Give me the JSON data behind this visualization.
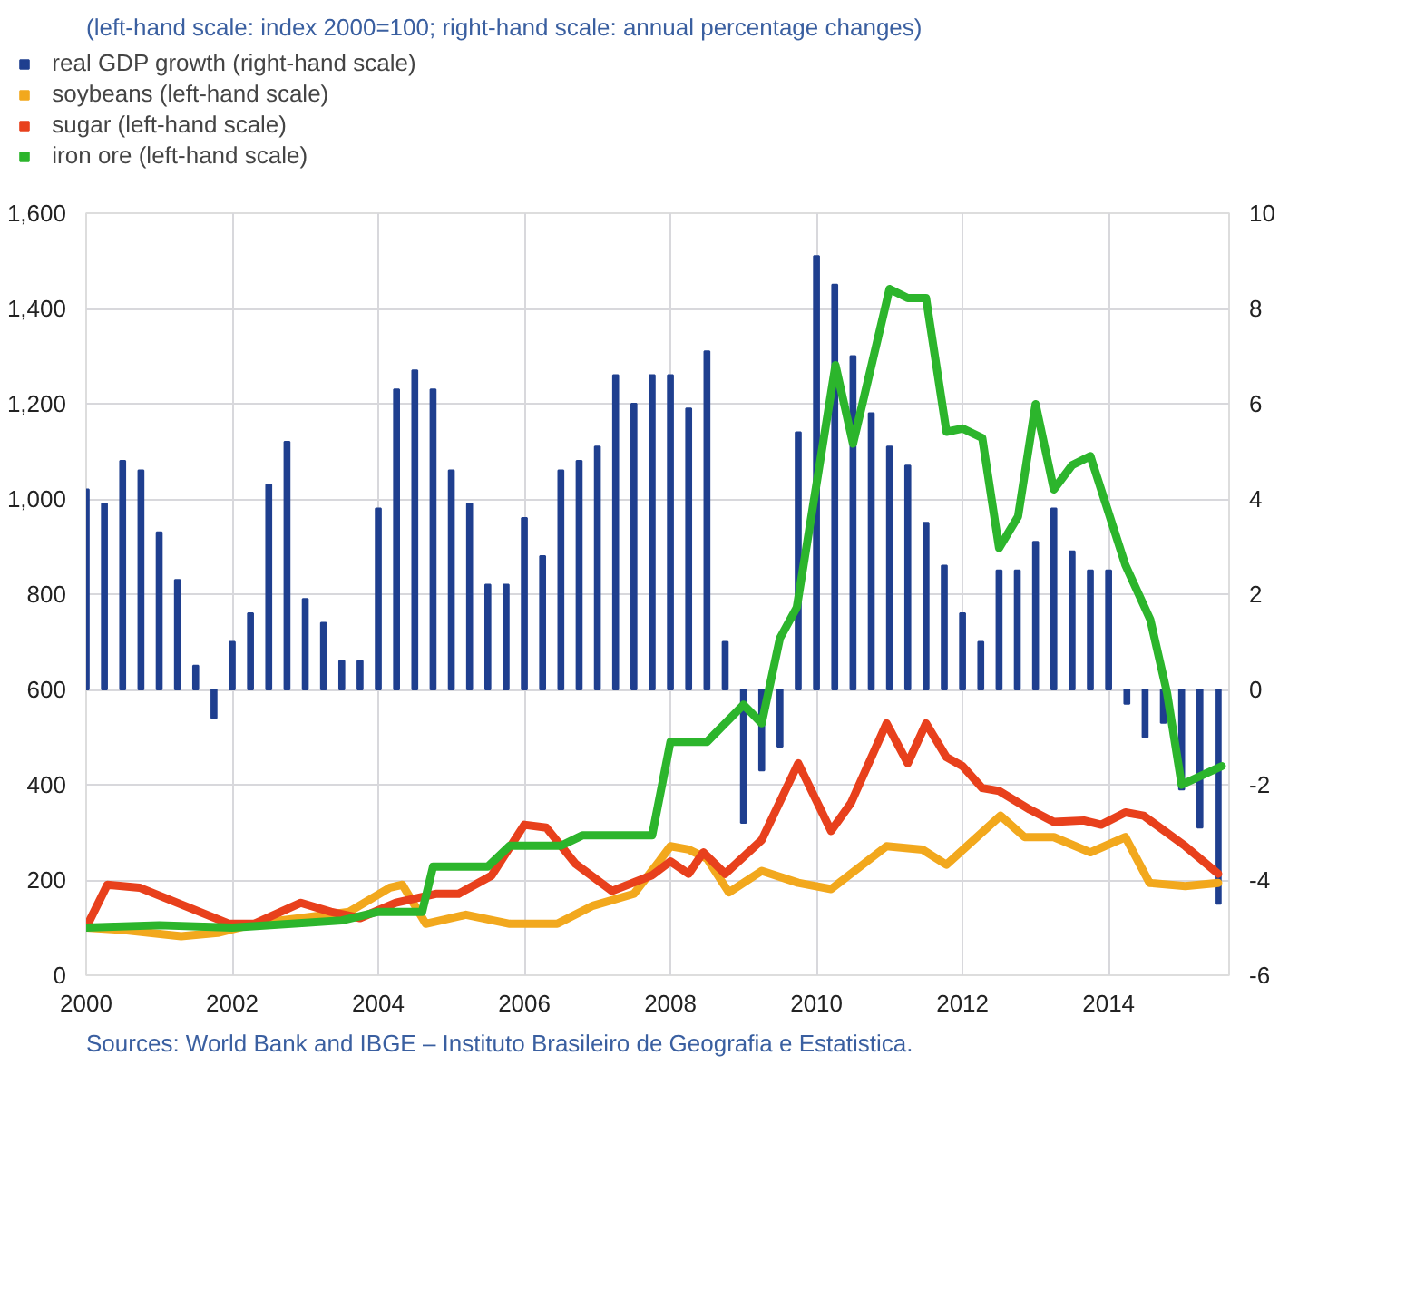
{
  "chart_data": {
    "type": "line",
    "subtitle": "(left-hand scale: index 2000=100; right-hand scale: annual percentage changes)",
    "annotations": [
      "Sources: World Bank and IBGE – Instituto Brasileiro de Geografia e Estatistica."
    ],
    "xlim": [
      2000,
      2015.65
    ],
    "xticks": [
      2000,
      2002,
      2004,
      2006,
      2008,
      2010,
      2012,
      2014
    ],
    "ylim": [
      0,
      1600
    ],
    "yticks": [
      0,
      200,
      400,
      600,
      800,
      {
        "value": 1000,
        "label": "1,000"
      },
      {
        "value": 1200,
        "label": "1,200"
      },
      {
        "value": 1400,
        "label": "1,400"
      },
      {
        "value": 1600,
        "label": "1,600"
      }
    ],
    "y2lim": [
      -6,
      10
    ],
    "y2ticks": [
      -6,
      -4,
      -2,
      0,
      2,
      4,
      6,
      8,
      10
    ],
    "grid": true,
    "legend": "top",
    "marker": "none",
    "line_style": "solid",
    "series": [
      {
        "name": "real GDP growth (right-hand scale)",
        "type": "bar",
        "axis": "y2",
        "color": "#1f3f8f",
        "x": [
          2000,
          2000.25,
          2000.5,
          2000.75,
          2001,
          2001.25,
          2001.5,
          2001.75,
          2002,
          2002.25,
          2002.5,
          2002.75,
          2003,
          2003.25,
          2003.5,
          2003.75,
          2004,
          2004.25,
          2004.5,
          2004.75,
          2005,
          2005.25,
          2005.5,
          2005.75,
          2006,
          2006.25,
          2006.5,
          2006.75,
          2007,
          2007.25,
          2007.5,
          2007.75,
          2008,
          2008.25,
          2008.5,
          2008.75,
          2009,
          2009.25,
          2009.5,
          2009.75,
          2010,
          2010.25,
          2010.5,
          2010.75,
          2011,
          2011.25,
          2011.5,
          2011.75,
          2012,
          2012.25,
          2012.5,
          2012.75,
          2013,
          2013.25,
          2013.5,
          2013.75,
          2014,
          2014.25,
          2014.5,
          2014.75,
          2015,
          2015.25,
          2015.5
        ],
        "values": [
          4.2,
          3.9,
          4.8,
          4.6,
          3.3,
          2.3,
          0.5,
          -0.6,
          1.0,
          1.6,
          4.3,
          5.2,
          1.9,
          1.4,
          0.6,
          0.6,
          3.8,
          6.3,
          6.7,
          6.3,
          4.6,
          3.9,
          2.2,
          2.2,
          3.6,
          2.8,
          4.6,
          4.8,
          5.1,
          6.6,
          6.0,
          6.6,
          6.6,
          5.9,
          7.1,
          1.0,
          -2.8,
          -1.7,
          -1.2,
          5.4,
          9.1,
          8.5,
          7.0,
          5.8,
          5.1,
          4.7,
          3.5,
          2.6,
          1.6,
          1.0,
          2.5,
          2.5,
          3.1,
          3.8,
          2.9,
          2.5,
          2.5,
          -0.3,
          -1.0,
          -0.7,
          -2.1,
          -2.9,
          -4.5
        ]
      },
      {
        "name": "soybeans (left-hand scale)",
        "color": "#f2a81d",
        "x": [
          2000,
          2000.5,
          2001.3,
          2001.8,
          2002.3,
          2002.94,
          2003.6,
          2004.16,
          2004.33,
          2004.65,
          2005.2,
          2005.8,
          2006.45,
          2006.94,
          2007.5,
          2007.85,
          2008.0,
          2008.25,
          2008.5,
          2008.8,
          2009.25,
          2009.75,
          2010.2,
          2010.96,
          2011.45,
          2011.78,
          2012.52,
          2012.85,
          2013.25,
          2013.75,
          2014.23,
          2014.56,
          2015.05,
          2015.5
        ],
        "values": [
          100,
          95,
          82,
          89,
          108,
          120,
          133,
          184,
          190,
          108,
          127,
          108,
          108,
          146,
          171,
          240,
          271,
          264,
          245,
          174,
          219,
          194,
          181,
          271,
          264,
          232,
          335,
          290,
          290,
          258,
          290,
          194,
          187,
          194
        ]
      },
      {
        "name": "sugar (left-hand scale)",
        "color": "#e8401c",
        "x": [
          2000,
          2000.29,
          2000.73,
          2001.96,
          2002.3,
          2002.94,
          2003.35,
          2003.75,
          2004.24,
          2004.8,
          2005.1,
          2005.55,
          2006.0,
          2006.3,
          2006.7,
          2007.2,
          2007.75,
          2008.0,
          2008.25,
          2008.45,
          2008.75,
          2009.25,
          2009.75,
          2010.2,
          2010.47,
          2010.96,
          2011.25,
          2011.5,
          2011.78,
          2012.0,
          2012.27,
          2012.5,
          2012.92,
          2013.25,
          2013.66,
          2013.9,
          2014.23,
          2014.48,
          2015.05,
          2015.5
        ],
        "values": [
          100,
          190,
          184,
          108,
          108,
          152,
          133,
          120,
          152,
          171,
          171,
          209,
          316,
          310,
          234,
          177,
          210,
          239,
          213,
          258,
          213,
          284,
          445,
          303,
          361,
          529,
          445,
          529,
          458,
          439,
          393,
          387,
          348,
          322,
          325,
          316,
          342,
          335,
          271,
          213
        ]
      },
      {
        "name": "iron ore (left-hand scale)",
        "color": "#2cb52c",
        "x": [
          2000,
          2001,
          2002,
          2003,
          2003.5,
          2004,
          2004.6,
          2004.75,
          2005.5,
          2005.8,
          2006.5,
          2006.8,
          2007.75,
          2008.0,
          2008.5,
          2009.0,
          2009.25,
          2009.5,
          2009.73,
          2010.26,
          2010.5,
          2011.0,
          2011.25,
          2011.5,
          2011.78,
          2012.0,
          2012.27,
          2012.5,
          2012.76,
          2013.0,
          2013.25,
          2013.5,
          2013.75,
          2014.23,
          2014.57,
          2014.8,
          2015.0,
          2015.55
        ],
        "values": [
          100,
          105,
          100,
          110,
          115,
          133,
          133,
          228,
          228,
          272,
          272,
          294,
          294,
          490,
          490,
          568,
          529,
          708,
          772,
          1281,
          1116,
          1441,
          1422,
          1422,
          1141,
          1148,
          1128,
          897,
          963,
          1199,
          1020,
          1071,
          1090,
          861,
          747,
          593,
          400,
          439
        ]
      }
    ]
  }
}
